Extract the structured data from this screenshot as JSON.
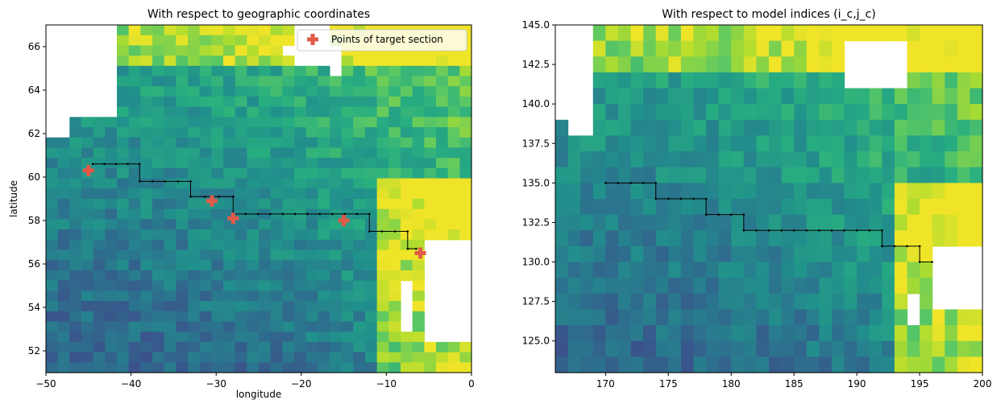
{
  "chart_data": [
    {
      "type": "heatmap",
      "title": "With respect to geographic coordinates",
      "xlabel": "longitude",
      "ylabel": "latitude",
      "xlim": [
        -50,
        0
      ],
      "ylim": [
        51,
        67
      ],
      "xticks": [
        -50,
        -40,
        -30,
        -20,
        -10,
        0
      ],
      "yticks": [
        52,
        54,
        56,
        58,
        60,
        62,
        64,
        66
      ],
      "xtick_labels": [
        "−50",
        "−40",
        "−30",
        "−20",
        "−10",
        "0"
      ],
      "ytick_labels": [
        "52",
        "54",
        "56",
        "58",
        "60",
        "62",
        "64",
        "66"
      ],
      "grid": false,
      "legend": {
        "position": "top-right",
        "entries": [
          {
            "label": "Points of target section",
            "marker": "plus",
            "color": "#e15a47"
          }
        ]
      },
      "section_path": {
        "color": "#000000",
        "x": [
          -44.5,
          -39,
          -39,
          -33,
          -33,
          -28,
          -28,
          -12,
          -12,
          -7.5,
          -7.5,
          -6.5
        ],
        "y": [
          60.6,
          60.6,
          59.8,
          59.8,
          59.1,
          59.1,
          58.3,
          58.3,
          57.5,
          57.5,
          56.7,
          56.7
        ]
      },
      "target_points": {
        "color": "#e15a47",
        "x": [
          -45,
          -30.5,
          -28,
          -15,
          -6
        ],
        "y": [
          60.3,
          58.9,
          58.1,
          58.0,
          56.5
        ]
      }
    },
    {
      "type": "heatmap",
      "title": "With respect to model indices (i_c,j_c)",
      "xlabel": "",
      "ylabel": "",
      "xlim": [
        166,
        200
      ],
      "ylim": [
        123,
        145
      ],
      "xticks": [
        170,
        175,
        180,
        185,
        190,
        195,
        200
      ],
      "yticks": [
        125,
        127.5,
        130,
        132.5,
        135,
        137.5,
        140,
        142.5,
        145
      ],
      "xtick_labels": [
        "170",
        "175",
        "180",
        "185",
        "190",
        "195",
        "200"
      ],
      "ytick_labels": [
        "125.0",
        "127.5",
        "130.0",
        "132.5",
        "135.0",
        "137.5",
        "140.0",
        "142.5",
        "145.0"
      ],
      "grid": false,
      "section_path": {
        "color": "#000000",
        "x": [
          170,
          174,
          174,
          178,
          178,
          181,
          181,
          192,
          192,
          195,
          195,
          196
        ],
        "y": [
          135,
          135,
          134,
          134,
          133,
          133,
          132,
          132,
          131,
          131,
          130,
          130
        ]
      }
    }
  ]
}
